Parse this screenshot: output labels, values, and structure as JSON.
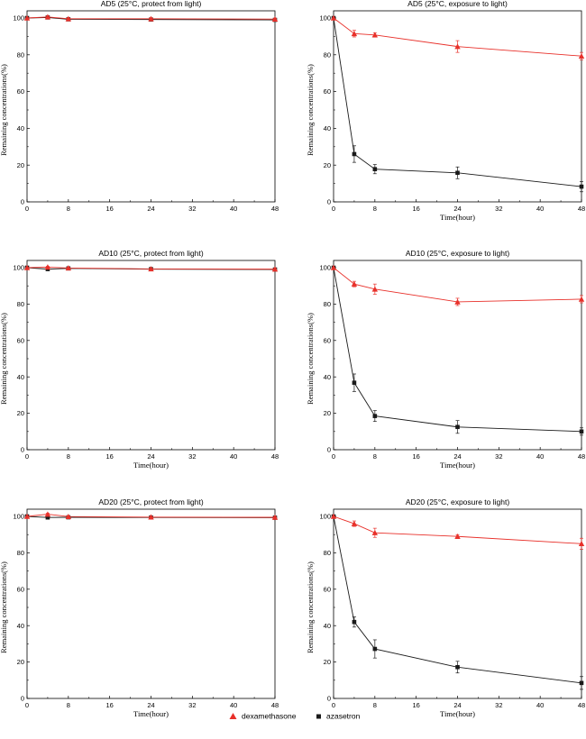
{
  "colors": {
    "dexamethasone": "#e8302a",
    "azasetron": "#1a1a1a"
  },
  "legend": {
    "dexamethasone": "dexamethasone",
    "azasetron": "azasetron"
  },
  "chart_data": [
    {
      "type": "line",
      "title": "AD5 (25°C, protect from light)",
      "xlabel": "",
      "ylabel": "Remaining concentrations(%)",
      "xlim": [
        0,
        48
      ],
      "ylim": [
        0,
        100
      ],
      "xticks": [
        "0",
        "8",
        "16",
        "24",
        "32",
        "40",
        "48"
      ],
      "yticks": [
        "0",
        "20",
        "40",
        "60",
        "80",
        "100"
      ],
      "x": [
        0,
        4,
        8,
        24,
        48
      ],
      "series": [
        {
          "name": "dexamethasone",
          "values": [
            100,
            100.6,
            99.6,
            99.6,
            99.4
          ],
          "errors": [
            0,
            0.4,
            0.4,
            0.4,
            0.4
          ]
        },
        {
          "name": "azasetron",
          "values": [
            100,
            100.3,
            99.3,
            99.2,
            99.0
          ],
          "errors": [
            0,
            0.3,
            0.3,
            0.3,
            0.3
          ]
        }
      ]
    },
    {
      "type": "line",
      "title": "AD5 (25°C, exposure to light)",
      "xlabel": "Time(hour)",
      "ylabel": "Remaining concentrations(%)",
      "xlim": [
        0,
        48
      ],
      "ylim": [
        0,
        100
      ],
      "xticks": [
        "0",
        "8",
        "16",
        "24",
        "32",
        "40",
        "48"
      ],
      "yticks": [
        "0",
        "20",
        "40",
        "60",
        "80",
        "100"
      ],
      "x": [
        0,
        4,
        8,
        24,
        48
      ],
      "series": [
        {
          "name": "dexamethasone",
          "values": [
            100,
            91.5,
            90.8,
            84.5,
            79.3
          ],
          "errors": [
            0,
            1.8,
            1.2,
            3.2,
            2.0
          ]
        },
        {
          "name": "azasetron",
          "values": [
            100,
            26,
            17.8,
            15.8,
            8.3
          ],
          "errors": [
            0,
            4.5,
            2.5,
            3.2,
            2.8
          ]
        }
      ]
    },
    {
      "type": "line",
      "title": "AD10 (25°C, protect from light)",
      "xlabel": "Time(hour)",
      "ylabel": "Remaining concentrations(%)",
      "xlim": [
        0,
        48
      ],
      "ylim": [
        0,
        100
      ],
      "xticks": [
        "0",
        "8",
        "16",
        "24",
        "32",
        "40",
        "48"
      ],
      "yticks": [
        "0",
        "20",
        "40",
        "60",
        "80",
        "100"
      ],
      "x": [
        0,
        4,
        8,
        24,
        48
      ],
      "series": [
        {
          "name": "dexamethasone",
          "values": [
            100,
            100.3,
            99.8,
            99.3,
            99.2
          ],
          "errors": [
            0,
            0.5,
            0.4,
            0.3,
            0.3
          ]
        },
        {
          "name": "azasetron",
          "values": [
            100,
            99.2,
            99.6,
            99.2,
            99.0
          ],
          "errors": [
            0,
            0.4,
            0.4,
            0.3,
            0.3
          ]
        }
      ]
    },
    {
      "type": "line",
      "title": "AD10 (25°C, exposure to light)",
      "xlabel": "Time(hour)",
      "ylabel": "Remaining concentrations(%)",
      "xlim": [
        0,
        48
      ],
      "ylim": [
        0,
        100
      ],
      "xticks": [
        "0",
        "8",
        "16",
        "24",
        "32",
        "40",
        "48"
      ],
      "yticks": [
        "0",
        "20",
        "40",
        "60",
        "80",
        "100"
      ],
      "x": [
        0,
        4,
        8,
        24,
        48
      ],
      "series": [
        {
          "name": "dexamethasone",
          "values": [
            100,
            91,
            88.2,
            81.2,
            82.7
          ],
          "errors": [
            0,
            1.5,
            2.8,
            2.0,
            2.0
          ]
        },
        {
          "name": "azasetron",
          "values": [
            100,
            36.8,
            18.5,
            12.5,
            10.0
          ],
          "errors": [
            0,
            4.8,
            3.0,
            3.5,
            2.0
          ]
        }
      ]
    },
    {
      "type": "line",
      "title": "AD20 (25°C, protect from light)",
      "xlabel": "Time(hour)",
      "ylabel": "Remaining concentrations(%)",
      "xlim": [
        0,
        48
      ],
      "ylim": [
        0,
        100
      ],
      "xticks": [
        "0",
        "8",
        "16",
        "24",
        "32",
        "40",
        "48"
      ],
      "yticks": [
        "0",
        "20",
        "40",
        "60",
        "80",
        "100"
      ],
      "x": [
        0,
        4,
        8,
        24,
        48
      ],
      "series": [
        {
          "name": "dexamethasone",
          "values": [
            100,
            101.2,
            99.9,
            99.6,
            99.5
          ],
          "errors": [
            0,
            0.6,
            0.4,
            0.3,
            0.3
          ]
        },
        {
          "name": "azasetron",
          "values": [
            100,
            99.4,
            99.5,
            99.4,
            99.3
          ],
          "errors": [
            0,
            0.4,
            0.4,
            0.3,
            0.3
          ]
        }
      ]
    },
    {
      "type": "line",
      "title": "AD20 (25°C, exposure to light)",
      "xlabel": "Time(hour)",
      "ylabel": "Remaining concentrations(%)",
      "xlim": [
        0,
        48
      ],
      "ylim": [
        0,
        100
      ],
      "xticks": [
        "0",
        "8",
        "16",
        "24",
        "32",
        "40",
        "48"
      ],
      "yticks": [
        "0",
        "20",
        "40",
        "60",
        "80",
        "100"
      ],
      "x": [
        0,
        4,
        8,
        24,
        48
      ],
      "series": [
        {
          "name": "dexamethasone",
          "values": [
            100,
            96,
            91,
            89,
            85
          ],
          "errors": [
            0,
            1.5,
            2.5,
            1.0,
            3.0
          ]
        },
        {
          "name": "azasetron",
          "values": [
            100,
            42,
            27.2,
            17.2,
            8.5
          ],
          "errors": [
            0,
            2.8,
            5.0,
            3.2,
            3.5
          ]
        }
      ]
    }
  ]
}
